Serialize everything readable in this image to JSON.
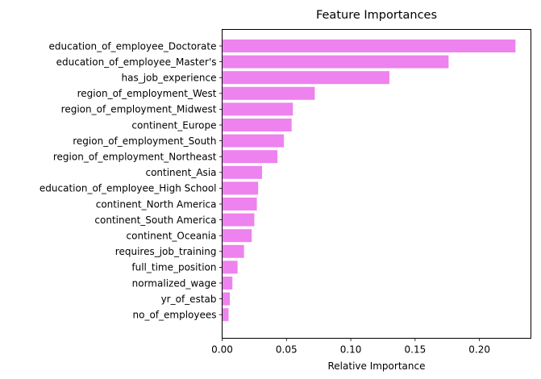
{
  "colors": {
    "bar": "#ee82ee",
    "axis": "#000000",
    "background": "#ffffff"
  },
  "chart_data": {
    "type": "bar",
    "orientation": "horizontal",
    "title": "Feature Importances",
    "xlabel": "Relative Importance",
    "ylabel": "",
    "xlim": [
      0,
      0.24
    ],
    "xticks": [
      0.0,
      0.05,
      0.1,
      0.15,
      0.2
    ],
    "xtick_labels": [
      "0.00",
      "0.05",
      "0.10",
      "0.15",
      "0.20"
    ],
    "grid": false,
    "categories": [
      "education_of_employee_Doctorate",
      "education_of_employee_Master's",
      "has_job_experience",
      "region_of_employment_West",
      "region_of_employment_Midwest",
      "continent_Europe",
      "region_of_employment_South",
      "region_of_employment_Northeast",
      "continent_Asia",
      "education_of_employee_High School",
      "continent_North America",
      "continent_South America",
      "continent_Oceania",
      "requires_job_training",
      "full_time_position",
      "normalized_wage",
      "yr_of_estab",
      "no_of_employees"
    ],
    "values": [
      0.228,
      0.176,
      0.13,
      0.072,
      0.055,
      0.054,
      0.048,
      0.043,
      0.031,
      0.028,
      0.027,
      0.025,
      0.023,
      0.017,
      0.012,
      0.008,
      0.006,
      0.005
    ]
  }
}
